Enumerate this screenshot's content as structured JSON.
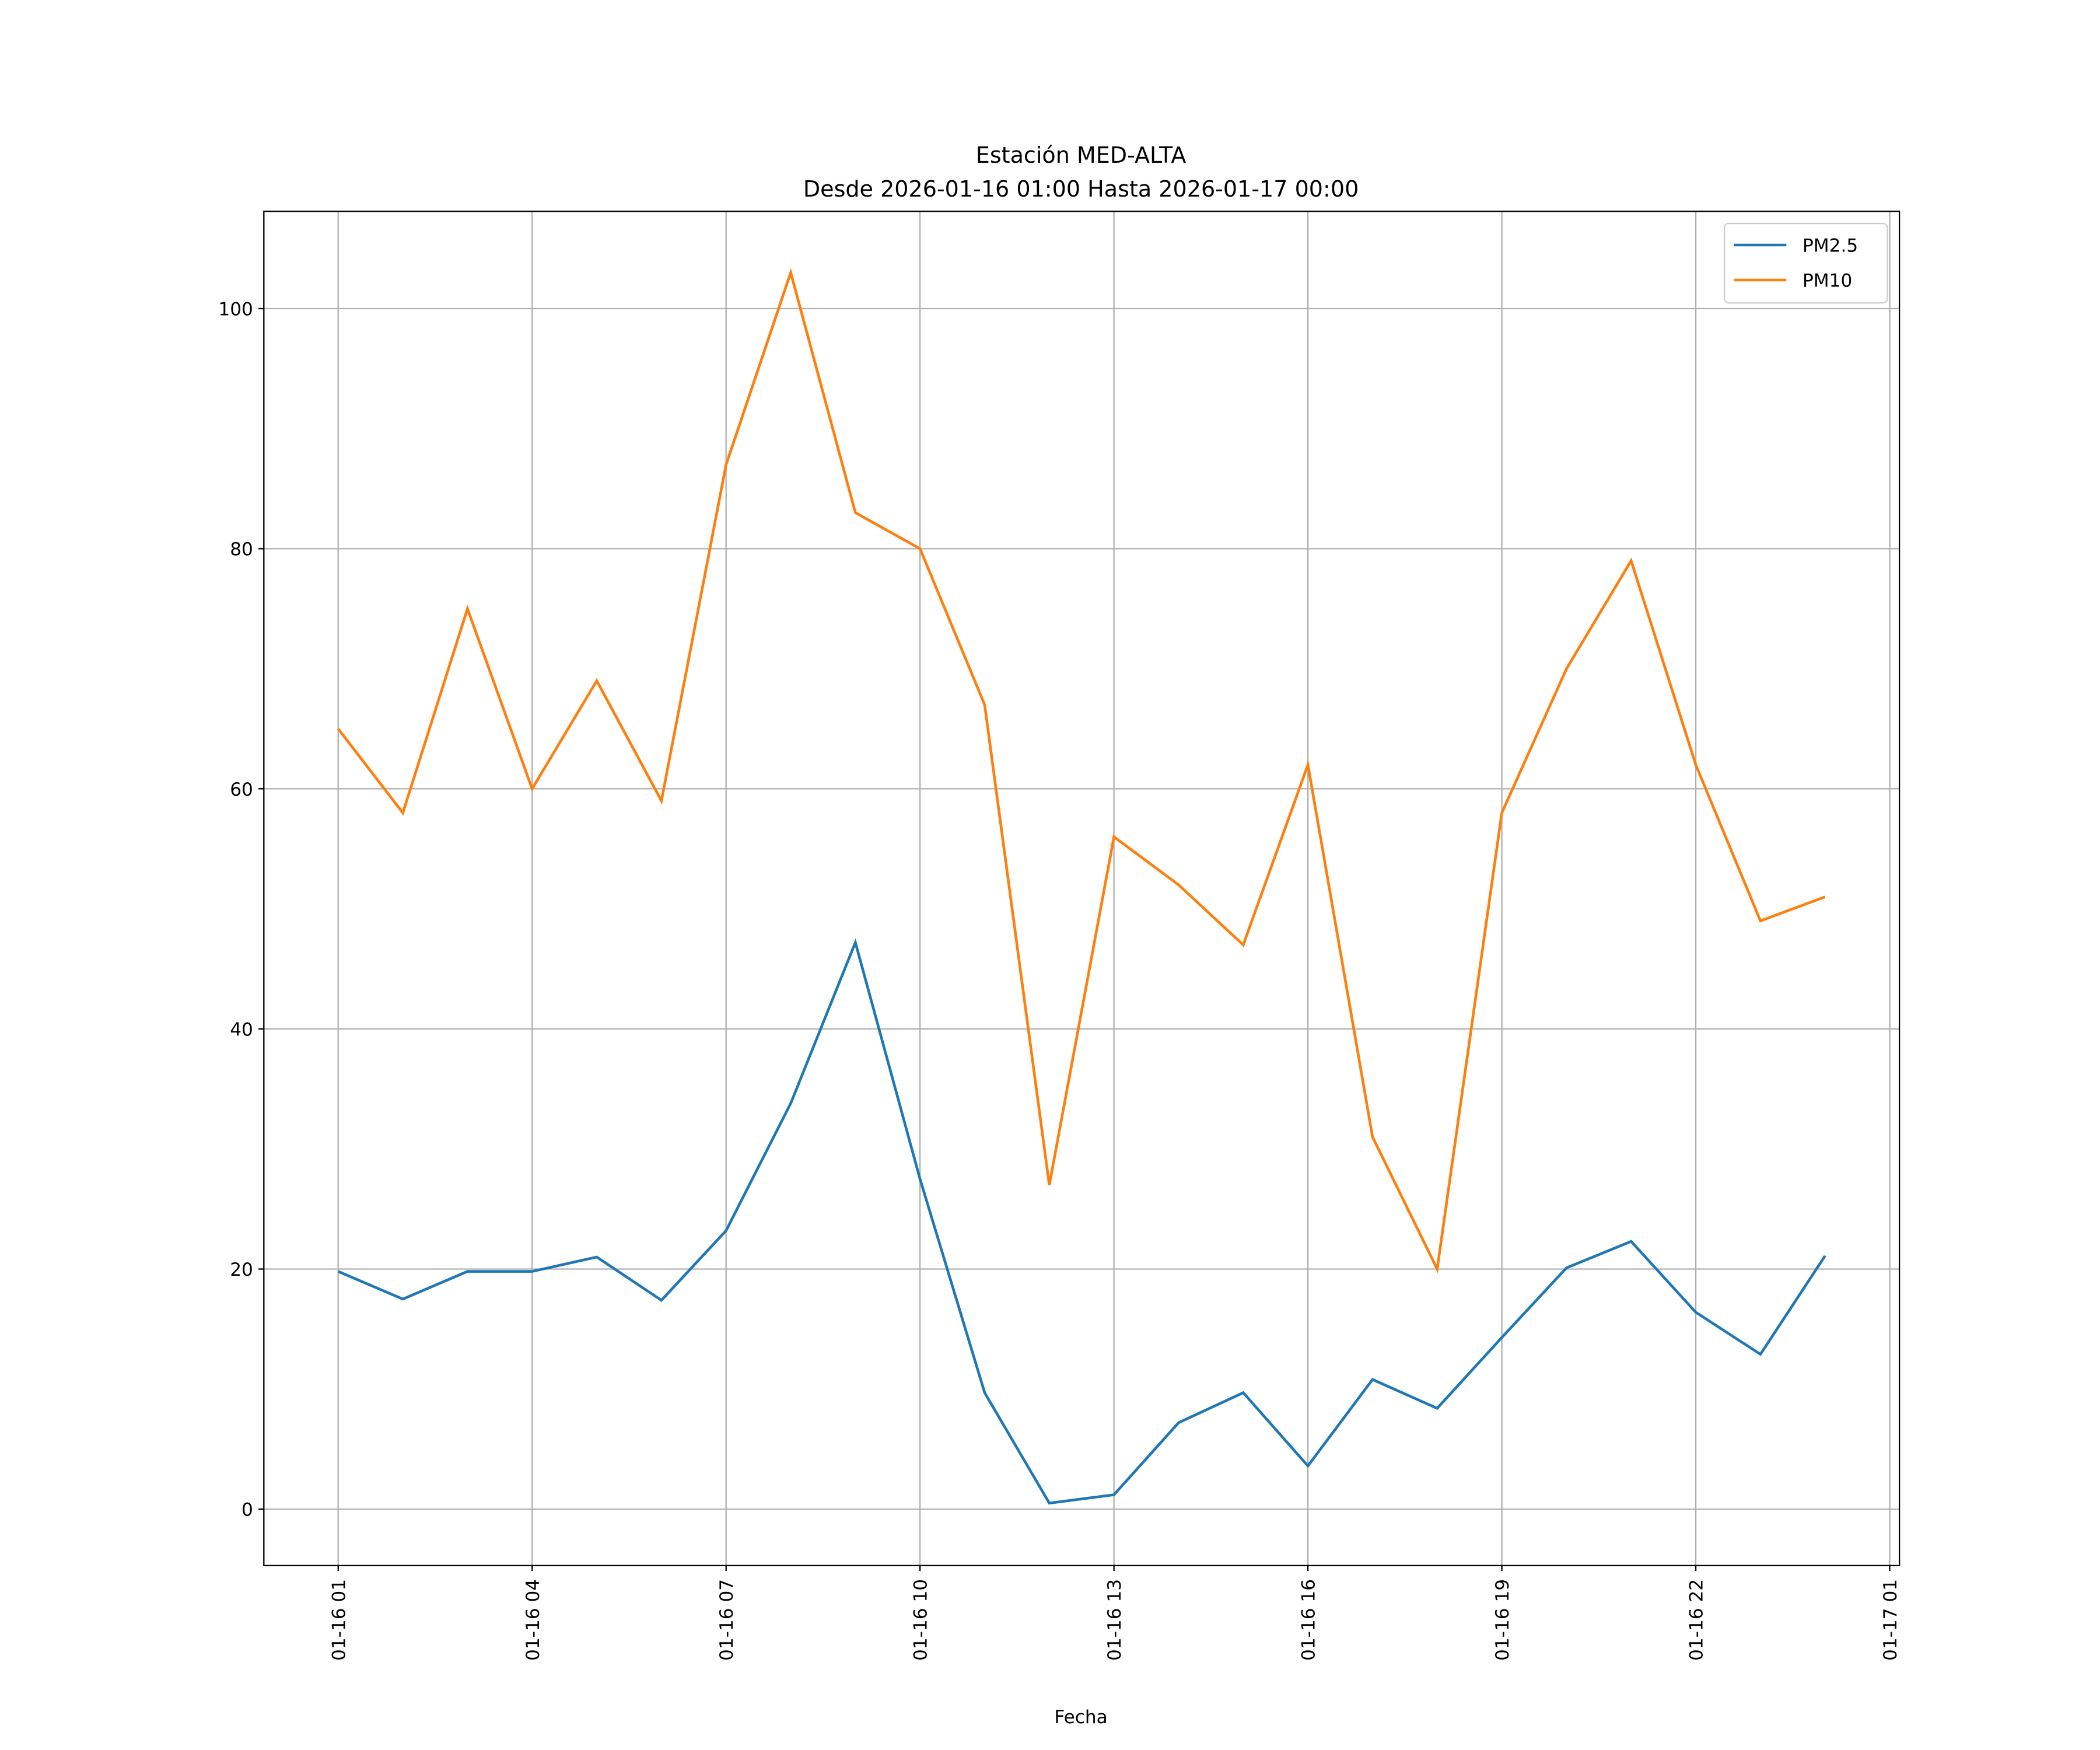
{
  "chart_data": {
    "type": "line",
    "title": "Estación MED-ALTA",
    "subtitle": "Desde 2026-01-16 01:00 Hasta 2026-01-17 00:00",
    "xlabel": "Fecha",
    "ylabel": "",
    "x_hours_from_start": [
      0,
      1,
      2,
      3,
      4,
      5,
      6,
      7,
      8,
      9,
      10,
      11,
      12,
      13,
      14,
      15,
      16,
      17,
      18,
      19,
      20,
      21,
      22,
      23
    ],
    "x_labels_full": [
      "2026-01-16 01:00",
      "2026-01-16 02:00",
      "2026-01-16 03:00",
      "2026-01-16 04:00",
      "2026-01-16 05:00",
      "2026-01-16 06:00",
      "2026-01-16 07:00",
      "2026-01-16 08:00",
      "2026-01-16 09:00",
      "2026-01-16 10:00",
      "2026-01-16 11:00",
      "2026-01-16 12:00",
      "2026-01-16 13:00",
      "2026-01-16 14:00",
      "2026-01-16 15:00",
      "2026-01-16 16:00",
      "2026-01-16 17:00",
      "2026-01-16 18:00",
      "2026-01-16 19:00",
      "2026-01-16 20:00",
      "2026-01-16 21:00",
      "2026-01-16 22:00",
      "2026-01-16 23:00",
      "2026-01-17 00:00"
    ],
    "series": [
      {
        "name": "PM2.5",
        "color": "#1f77b4",
        "values": [
          19.8,
          17.5,
          19.8,
          19.8,
          21.0,
          17.4,
          23.2,
          33.8,
          47.2,
          27.5,
          9.7,
          0.5,
          1.2,
          7.2,
          9.7,
          3.6,
          10.8,
          8.4,
          14.3,
          20.1,
          22.3,
          16.4,
          12.9,
          21.1
        ]
      },
      {
        "name": "PM10",
        "color": "#ff7f0e",
        "values": [
          65,
          58,
          75,
          60,
          69,
          59,
          87,
          103,
          83,
          80,
          67,
          27,
          56,
          52,
          47,
          62,
          31,
          20,
          58,
          70,
          79,
          62,
          49,
          51
        ]
      }
    ],
    "xticks": [
      {
        "hour": 0,
        "label": "01-16 01"
      },
      {
        "hour": 3,
        "label": "01-16 04"
      },
      {
        "hour": 6,
        "label": "01-16 07"
      },
      {
        "hour": 9,
        "label": "01-16 10"
      },
      {
        "hour": 12,
        "label": "01-16 13"
      },
      {
        "hour": 15,
        "label": "01-16 16"
      },
      {
        "hour": 18,
        "label": "01-16 19"
      },
      {
        "hour": 21,
        "label": "01-16 22"
      },
      {
        "hour": 24,
        "label": "01-17 01"
      }
    ],
    "yticks": [
      0,
      20,
      40,
      60,
      80,
      100
    ],
    "xlim_hours": [
      -1.15,
      24.15
    ],
    "ylim": [
      -4.7,
      108.1
    ],
    "grid": true,
    "legend": "top-right"
  }
}
